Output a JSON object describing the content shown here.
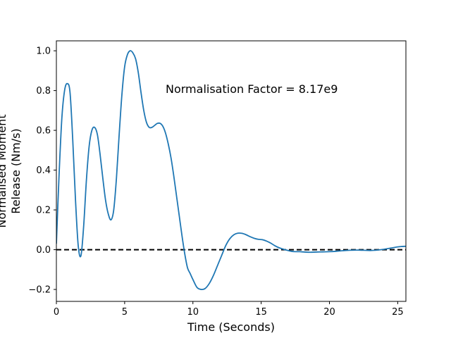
{
  "chart_data": {
    "type": "line",
    "title": "",
    "xlabel": "Time (Seconds)",
    "ylabel_lines": [
      "Normalised Moment",
      "Release (Nm/s)"
    ],
    "annotation": {
      "text": "Normalisation Factor = 8.17e9",
      "x": 8.0,
      "y": 0.81
    },
    "xlim": [
      0,
      25.6
    ],
    "ylim": [
      -0.26,
      1.05
    ],
    "xticks": [
      0,
      5,
      10,
      15,
      20,
      25
    ],
    "xtick_labels": [
      "0",
      "5",
      "10",
      "15",
      "20",
      "25"
    ],
    "yticks": [
      -0.2,
      0.0,
      0.2,
      0.4,
      0.6,
      0.8,
      1.0
    ],
    "ytick_labels": [
      "−0.2",
      "0.0",
      "0.2",
      "0.4",
      "0.6",
      "0.8",
      "1.0"
    ],
    "grid": false,
    "series": [
      {
        "color": "#1f77b4",
        "x": [
          0,
          0.2,
          0.4,
          0.6,
          0.8,
          1.0,
          1.2,
          1.4,
          1.6,
          1.8,
          2.0,
          2.2,
          2.4,
          2.6,
          2.8,
          3.0,
          3.2,
          3.4,
          3.6,
          3.8,
          4.0,
          4.2,
          4.4,
          4.6,
          4.8,
          5.0,
          5.2,
          5.4,
          5.6,
          5.8,
          6.0,
          6.2,
          6.4,
          6.6,
          6.8,
          7.0,
          7.2,
          7.4,
          7.6,
          7.8,
          8.0,
          8.2,
          8.4,
          8.6,
          8.8,
          9.0,
          9.2,
          9.4,
          9.6,
          9.8,
          10.0,
          10.3,
          10.6,
          10.9,
          11.2,
          11.5,
          11.8,
          12.1,
          12.4,
          12.7,
          13.0,
          13.3,
          13.6,
          13.9,
          14.2,
          14.5,
          14.8,
          15.1,
          15.4,
          15.7,
          16.0,
          16.3,
          16.6,
          16.9,
          17.2,
          17.5,
          17.8,
          18.2,
          18.6,
          19.0,
          19.5,
          20.0,
          20.5,
          21.0,
          21.5,
          22.0,
          22.5,
          23.0,
          23.5,
          24.0,
          24.5,
          25.0,
          25.3,
          25.6
        ],
        "y": [
          0.03,
          0.38,
          0.66,
          0.8,
          0.835,
          0.79,
          0.55,
          0.25,
          0.02,
          -0.03,
          0.12,
          0.35,
          0.52,
          0.6,
          0.615,
          0.58,
          0.48,
          0.36,
          0.25,
          0.18,
          0.15,
          0.2,
          0.36,
          0.58,
          0.78,
          0.92,
          0.98,
          1.0,
          0.99,
          0.96,
          0.89,
          0.79,
          0.7,
          0.64,
          0.615,
          0.615,
          0.625,
          0.635,
          0.635,
          0.62,
          0.585,
          0.53,
          0.46,
          0.37,
          0.27,
          0.17,
          0.07,
          -0.02,
          -0.09,
          -0.12,
          -0.15,
          -0.19,
          -0.2,
          -0.195,
          -0.17,
          -0.13,
          -0.08,
          -0.03,
          0.02,
          0.055,
          0.075,
          0.083,
          0.082,
          0.075,
          0.065,
          0.057,
          0.052,
          0.05,
          0.043,
          0.033,
          0.02,
          0.01,
          0.003,
          -0.003,
          -0.008,
          -0.01,
          -0.01,
          -0.012,
          -0.013,
          -0.012,
          -0.011,
          -0.01,
          -0.008,
          -0.005,
          -0.003,
          -0.002,
          -0.003,
          -0.004,
          -0.002,
          0.002,
          0.008,
          0.014,
          0.016,
          0.017
        ]
      }
    ],
    "reference_line": {
      "y": 0.0,
      "style": "dashed",
      "color": "#000000"
    }
  }
}
